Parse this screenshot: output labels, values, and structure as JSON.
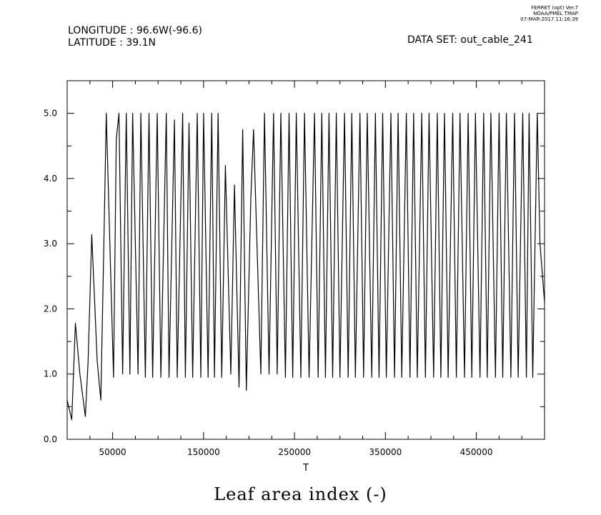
{
  "header": {
    "longitude": "LONGITUDE : 96.6W(-96.6)",
    "latitude": "LATITUDE : 39.1N",
    "dataset": "DATA SET: out_cable_241",
    "stamp_line1": "FERRET (opt) Ver.7",
    "stamp_line2": "NOAA/PMEL TMAP",
    "stamp_line3": "07-MAR-2017 11:16:39"
  },
  "chart_data": {
    "type": "line",
    "title": "Leaf area index (-)",
    "xlabel": "T",
    "ylabel": "",
    "xlim": [
      0,
      525000
    ],
    "ylim": [
      0.0,
      5.5
    ],
    "x_ticks": [
      {
        "value": 50000,
        "label": "50000"
      },
      {
        "value": 150000,
        "label": "150000"
      },
      {
        "value": 250000,
        "label": "250000"
      },
      {
        "value": 350000,
        "label": "350000"
      },
      {
        "value": 450000,
        "label": "450000"
      }
    ],
    "y_ticks": [
      {
        "value": 0.0,
        "label": "0.0"
      },
      {
        "value": 1.0,
        "label": "1.0"
      },
      {
        "value": 2.0,
        "label": "2.0"
      },
      {
        "value": 3.0,
        "label": "3.0"
      },
      {
        "value": 4.0,
        "label": "4.0"
      },
      {
        "value": 5.0,
        "label": "5.0"
      }
    ],
    "grid": false,
    "series": [
      {
        "color": "#000000",
        "x": [
          0,
          5000,
          9000,
          14000,
          20000,
          23000,
          27000,
          33000,
          37000,
          41000,
          43000,
          51000,
          54000,
          57000,
          61000,
          65000,
          69000,
          72000,
          78000,
          81000,
          86000,
          90000,
          94000,
          99000,
          103000,
          109000,
          112000,
          118000,
          121000,
          127000,
          130000,
          134000,
          138000,
          143000,
          147000,
          150000,
          155000,
          159000,
          162000,
          166000,
          170000,
          174000,
          180000,
          184000,
          189000,
          193000,
          197000,
          202000,
          205000,
          213000,
          217000,
          222000,
          227000,
          231000,
          235000,
          240000,
          244000,
          248000,
          252000,
          257000,
          261000,
          266000,
          272000,
          276000,
          280000,
          284000,
          288000,
          292000,
          296000,
          300000,
          305000,
          309000,
          313000,
          317000,
          322000,
          326000,
          330000,
          335000,
          339000,
          343000,
          347000,
          351000,
          356000,
          360000,
          364000,
          368000,
          373000,
          377000,
          381000,
          385000,
          390000,
          394000,
          398000,
          403000,
          407000,
          411000,
          415000,
          419000,
          424000,
          428000,
          432000,
          437000,
          441000,
          445000,
          449000,
          454000,
          458000,
          462000,
          466000,
          471000,
          475000,
          479000,
          483000,
          488000,
          492000,
          496000,
          501000,
          505000,
          508000,
          512000,
          517000,
          520000,
          525000
        ],
        "values": [
          0.6,
          0.3,
          1.78,
          1.0,
          0.35,
          1.2,
          3.14,
          1.2,
          0.6,
          3.5,
          5.0,
          0.95,
          4.6,
          5.0,
          1.0,
          5.0,
          1.0,
          5.0,
          1.0,
          5.0,
          0.95,
          5.0,
          0.95,
          5.0,
          0.95,
          5.0,
          0.95,
          4.9,
          0.95,
          5.0,
          0.95,
          4.85,
          0.95,
          5.0,
          0.95,
          5.0,
          0.95,
          5.0,
          0.95,
          5.0,
          0.95,
          4.2,
          1.0,
          3.9,
          0.8,
          4.75,
          0.75,
          3.7,
          4.75,
          1.0,
          5.0,
          1.0,
          5.0,
          1.0,
          5.0,
          0.95,
          5.0,
          0.95,
          5.0,
          0.95,
          5.0,
          0.95,
          5.0,
          0.95,
          5.0,
          0.95,
          5.0,
          0.95,
          5.0,
          0.95,
          5.0,
          0.95,
          5.0,
          0.95,
          5.0,
          0.95,
          5.0,
          0.95,
          5.0,
          0.95,
          5.0,
          0.95,
          5.0,
          0.95,
          5.0,
          0.95,
          5.0,
          0.95,
          5.0,
          0.95,
          5.0,
          0.95,
          5.0,
          0.95,
          5.0,
          0.95,
          5.0,
          0.95,
          5.0,
          0.95,
          5.0,
          0.95,
          5.0,
          0.95,
          5.0,
          0.95,
          5.0,
          0.95,
          5.0,
          0.95,
          5.0,
          0.95,
          5.0,
          0.95,
          5.0,
          0.95,
          5.0,
          0.95,
          5.0,
          0.95,
          5.0,
          3.0,
          2.1
        ]
      }
    ]
  }
}
